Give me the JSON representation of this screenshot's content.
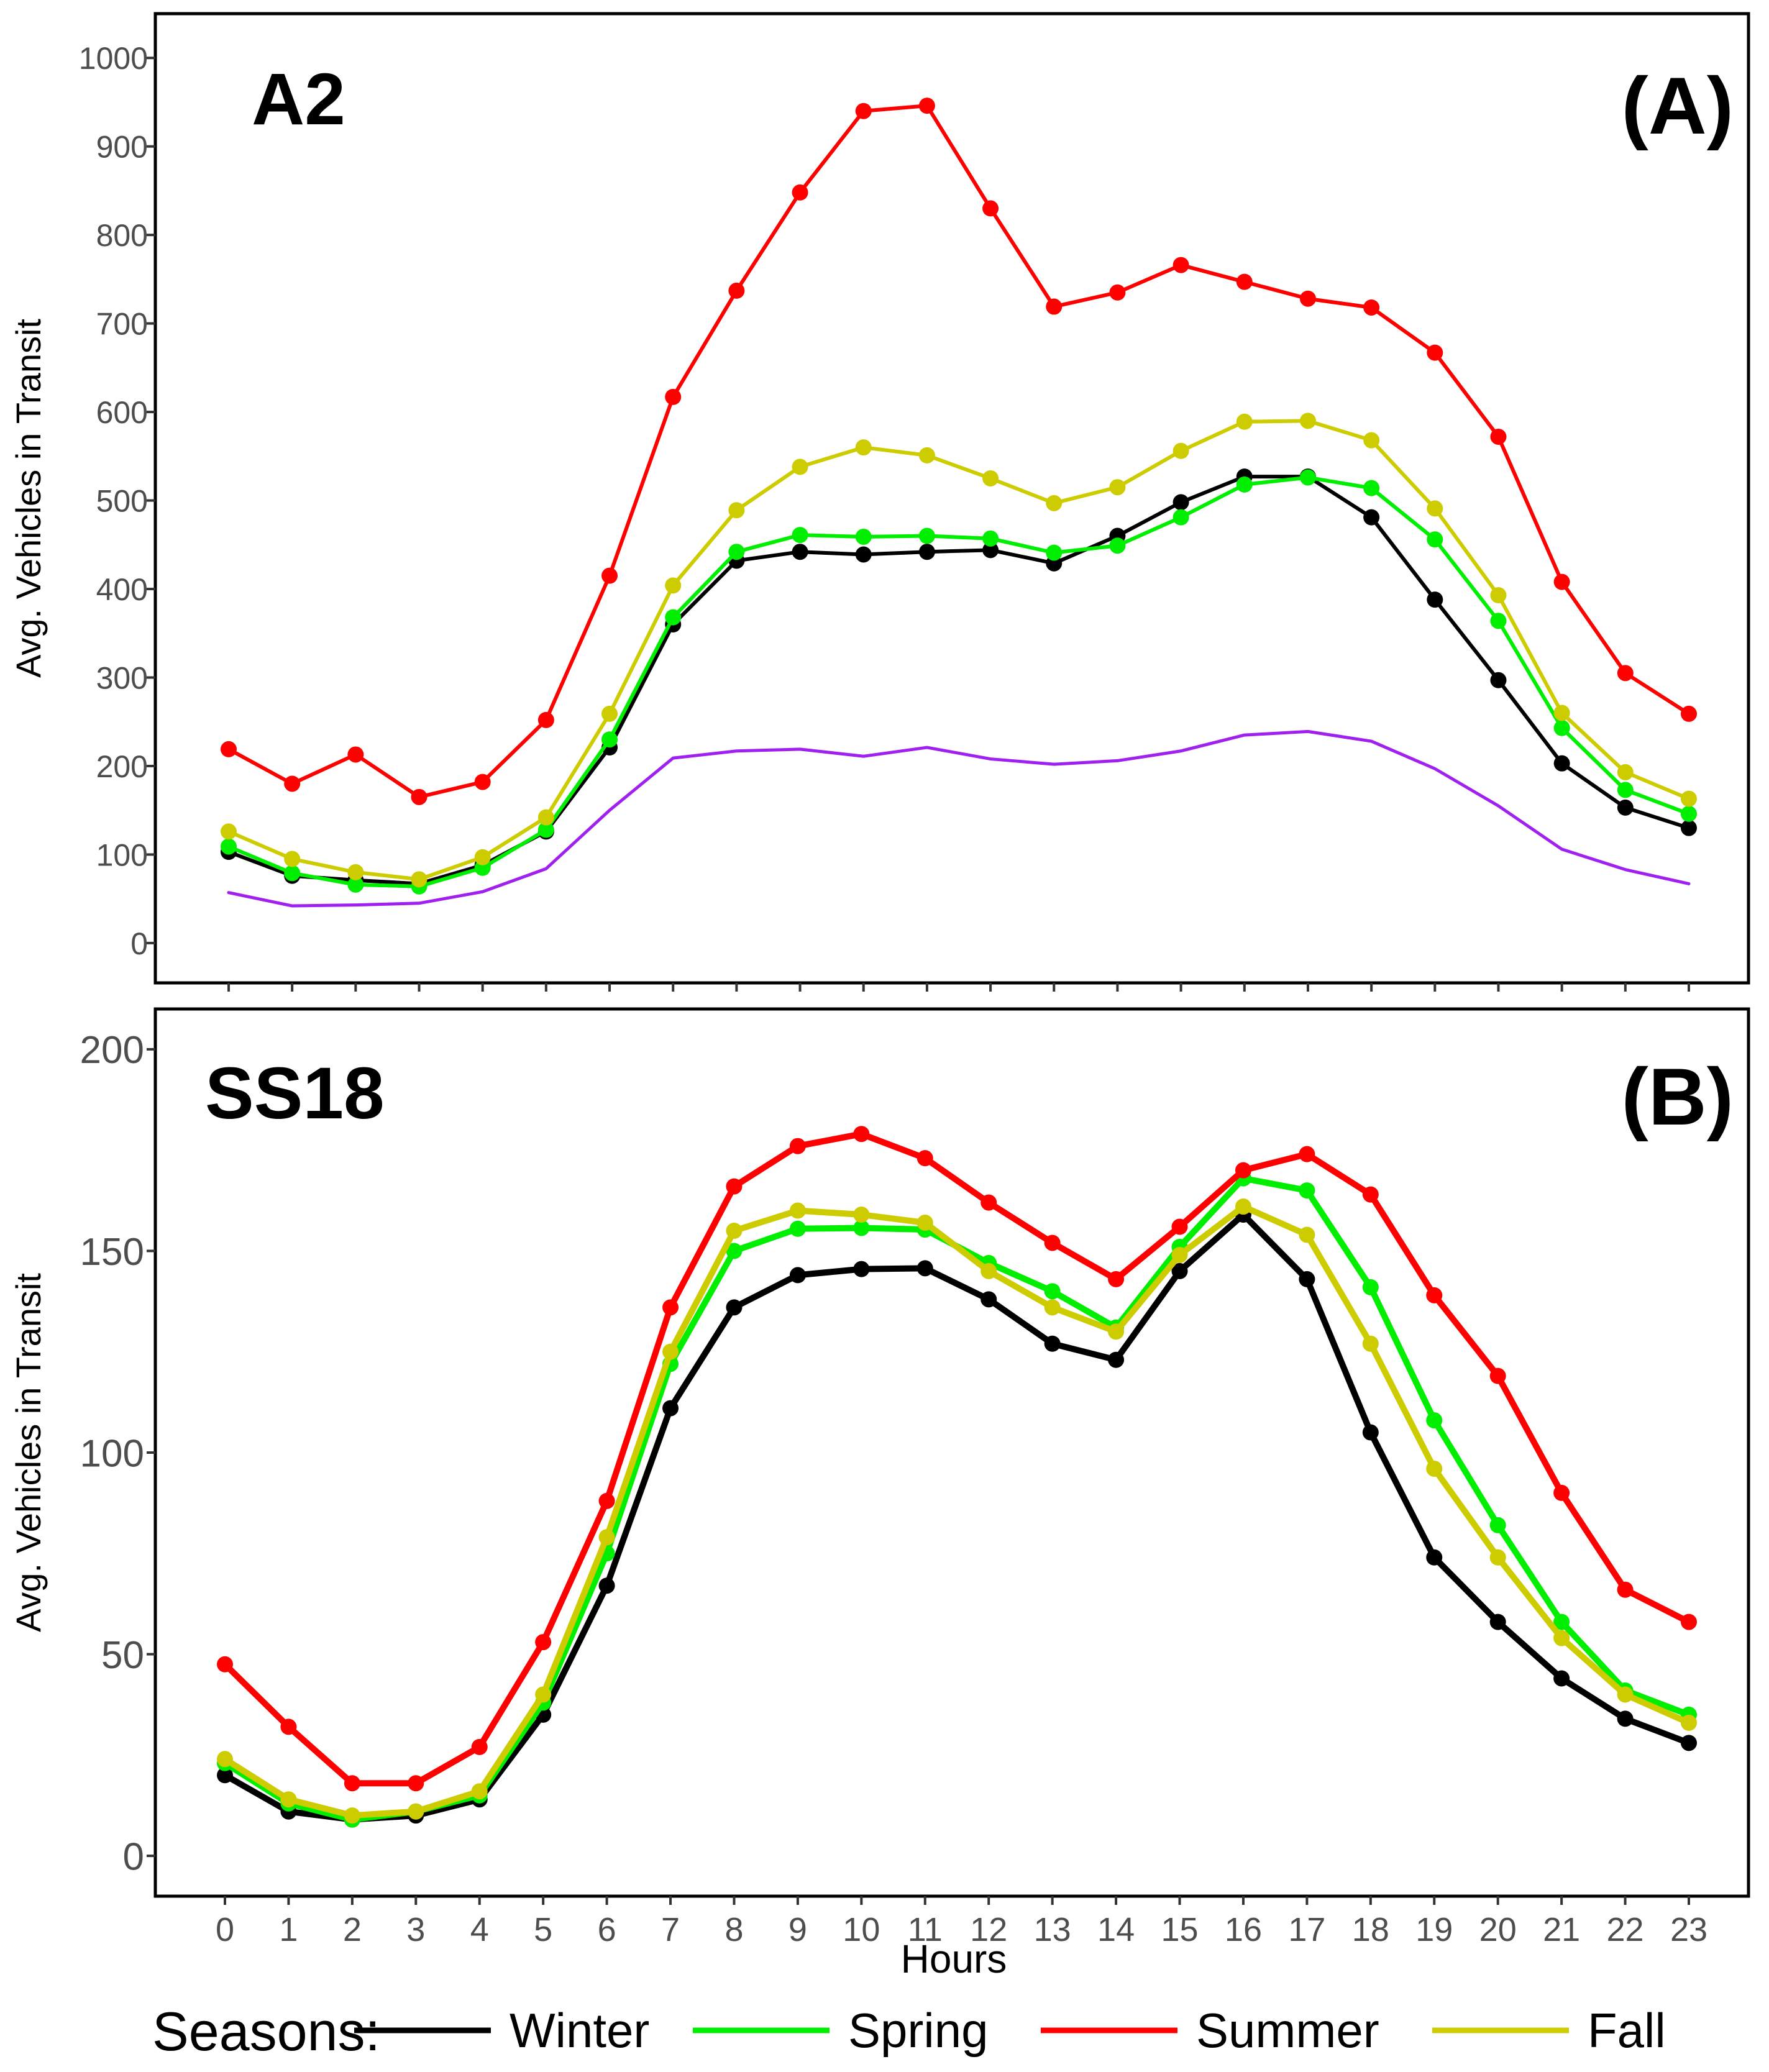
{
  "xlabel": "Hours",
  "legend": {
    "title": "Seasons:",
    "placement": "bottom",
    "items": [
      {
        "label": "Winter",
        "color": "#000000"
      },
      {
        "label": "Spring",
        "color": "#00ee00"
      },
      {
        "label": "Summer",
        "color": "#ff0000"
      },
      {
        "label": "Fall",
        "color": "#cccc00"
      }
    ]
  },
  "chart_data": [
    {
      "type": "line",
      "panel": "(A)",
      "title": "A2",
      "ylabel": "Avg. Vehicles in Transit",
      "xlabel": "Hours",
      "x": [
        0,
        1,
        2,
        3,
        4,
        5,
        6,
        7,
        8,
        9,
        10,
        11,
        12,
        13,
        14,
        15,
        16,
        17,
        18,
        19,
        20,
        21,
        22,
        23
      ],
      "ylim": [
        -45,
        1050
      ],
      "yticks": [
        0,
        100,
        200,
        300,
        400,
        500,
        600,
        700,
        800,
        900,
        1000
      ],
      "grid": false,
      "series": [
        {
          "name": "Winter",
          "color": "#000000",
          "markers": true,
          "values": [
            103,
            76,
            71,
            67,
            88,
            126,
            221,
            360,
            432,
            442,
            439,
            442,
            444,
            429,
            460,
            498,
            527,
            527,
            481,
            388,
            297,
            203,
            153,
            130
          ]
        },
        {
          "name": "Spring",
          "color": "#00ee00",
          "markers": true,
          "values": [
            109,
            79,
            66,
            64,
            85,
            128,
            230,
            368,
            442,
            461,
            459,
            460,
            457,
            441,
            449,
            481,
            518,
            526,
            514,
            456,
            364,
            243,
            173,
            146
          ]
        },
        {
          "name": "Summer",
          "color": "#ff0000",
          "markers": true,
          "values": [
            219,
            180,
            213,
            165,
            182,
            252,
            415,
            617,
            737,
            848,
            940,
            946,
            830,
            719,
            735,
            766,
            747,
            728,
            718,
            667,
            572,
            408,
            305,
            259
          ]
        },
        {
          "name": "Fall",
          "color": "#cccc00",
          "markers": true,
          "values": [
            126,
            95,
            80,
            72,
            97,
            142,
            259,
            404,
            489,
            538,
            560,
            551,
            525,
            497,
            515,
            556,
            589,
            590,
            568,
            491,
            393,
            260,
            193,
            163
          ]
        },
        {
          "color": "#a020f0",
          "markers": false,
          "values": [
            57,
            42,
            43,
            45,
            58,
            84,
            150,
            209,
            217,
            219,
            211,
            221,
            208,
            202,
            206,
            217,
            235,
            239,
            228,
            197,
            155,
            106,
            83,
            67
          ]
        }
      ]
    },
    {
      "type": "line",
      "panel": "(B)",
      "title": "SS18",
      "ylabel": "Avg. Vehicles in Transit",
      "xlabel": "Hours",
      "x": [
        0,
        1,
        2,
        3,
        4,
        5,
        6,
        7,
        8,
        9,
        10,
        11,
        12,
        13,
        14,
        15,
        16,
        17,
        18,
        19,
        20,
        21,
        22,
        23
      ],
      "ylim": [
        -10,
        210
      ],
      "yticks": [
        0,
        50,
        100,
        150,
        200
      ],
      "grid": false,
      "series": [
        {
          "name": "Winter",
          "color": "#000000",
          "markers": true,
          "values": [
            20,
            11,
            9,
            10,
            14,
            35,
            67,
            111,
            136,
            144,
            145.5,
            145.7,
            138,
            127,
            123,
            145,
            159,
            143,
            105,
            74,
            58,
            44,
            34,
            28
          ]
        },
        {
          "name": "Spring",
          "color": "#00ee00",
          "markers": true,
          "values": [
            23,
            13,
            9,
            11,
            15,
            38,
            75,
            122,
            150,
            155.5,
            155.7,
            155.3,
            147,
            140,
            131,
            151,
            168,
            165,
            141,
            108,
            82,
            58,
            41,
            35
          ]
        },
        {
          "name": "Summer",
          "color": "#ff0000",
          "markers": true,
          "values": [
            47.5,
            32,
            18,
            18,
            27,
            53,
            88,
            136,
            166,
            176,
            179,
            173,
            162,
            152,
            143,
            156,
            170,
            174,
            164,
            139,
            119,
            90,
            66,
            58
          ]
        },
        {
          "name": "Fall",
          "color": "#cccc00",
          "markers": true,
          "values": [
            24,
            14,
            10,
            11,
            16,
            40,
            79,
            125,
            155,
            160,
            159,
            157,
            145,
            136,
            130,
            149,
            161,
            154,
            127,
            96,
            74,
            54,
            40,
            33
          ]
        }
      ]
    }
  ]
}
